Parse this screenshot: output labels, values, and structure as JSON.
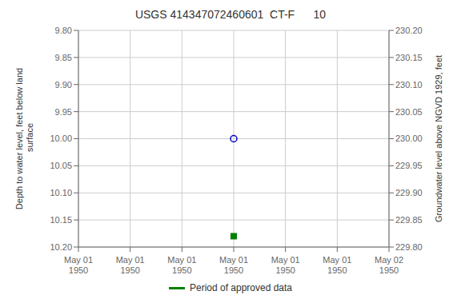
{
  "chart_data": {
    "type": "scatter",
    "title": "USGS 414347072460601  CT-F      10",
    "y_label": "Depth to water level, feet below land\n surface",
    "y2_label": "Groundwater level above NGVD 1929, feet",
    "categories": [
      "May 01\n1950",
      "May 01\n1950",
      "May 01\n1950",
      "May 01\n1950",
      "May 01\n1950",
      "May 01\n1950",
      "May 02\n1950"
    ],
    "series": [
      {
        "color": "#0000cc",
        "marker": "circle",
        "values": [
          null,
          null,
          null,
          10.0,
          null,
          null,
          null
        ]
      },
      {
        "name": "Period of approved data",
        "color": "#008000",
        "marker": "square",
        "values": [
          null,
          null,
          null,
          10.18,
          null,
          null,
          null
        ]
      }
    ],
    "ylim": [
      10.2,
      9.8
    ],
    "yticks": [
      {
        "value": 9.8,
        "label": "9.80"
      },
      9.85,
      {
        "value": 9.9,
        "label": "9.90"
      },
      9.95,
      {
        "value": 10,
        "label": "10.00"
      },
      10.05,
      {
        "value": 10.1,
        "label": "10.10"
      },
      10.15,
      {
        "value": 10.2,
        "label": "10.20"
      }
    ],
    "y2lim": [
      229.8,
      230.2
    ],
    "y2ticks": [
      {
        "value": 230.2,
        "label": "230.20"
      },
      230.15,
      {
        "value": 230.1,
        "label": "230.10"
      },
      230.05,
      {
        "value": 230,
        "label": "230.00"
      },
      229.95,
      {
        "value": 229.9,
        "label": "229.90"
      },
      229.85,
      {
        "value": 229.8,
        "label": "229.80"
      }
    ],
    "grid": true,
    "legend": "bottom"
  }
}
